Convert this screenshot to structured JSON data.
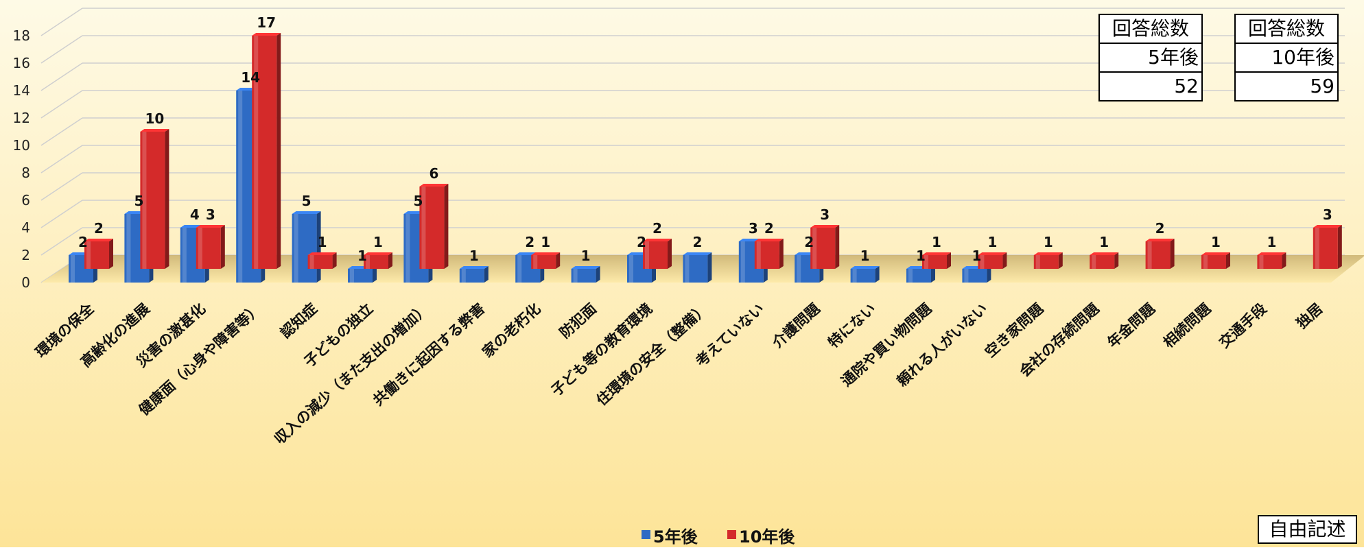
{
  "chart_data": {
    "type": "bar",
    "title": "",
    "xlabel": "",
    "ylabel": "",
    "ylim": [
      0,
      18
    ],
    "yticks": [
      0,
      2,
      4,
      6,
      8,
      10,
      12,
      14,
      16,
      18
    ],
    "grid": true,
    "legend_position": "bottom-center",
    "categories": [
      "環境の保全",
      "高齢化の進展",
      "災害の激甚化",
      "健康面（心身や障害等）",
      "認知症",
      "子どもの独立",
      "収入の減少（また支出の増加）",
      "共働きに起因する弊害",
      "家の老朽化",
      "防犯面",
      "子ども等の教育環境",
      "住環境の安全（整備）",
      "考えていない",
      "介護問題",
      "特にない",
      "通院や買い物問題",
      "頼れる人がいない",
      "空き家問題",
      "会社の存続問題",
      "年金問題",
      "相続問題",
      "交通手段",
      "独居"
    ],
    "series": [
      {
        "name": "5年後",
        "color": "#2e6bc4",
        "values": [
          2,
          5,
          4,
          14,
          5,
          1,
          5,
          1,
          2,
          1,
          2,
          2,
          3,
          2,
          1,
          1,
          1,
          null,
          null,
          null,
          null,
          null,
          null
        ]
      },
      {
        "name": "10年後",
        "color": "#d42a2a",
        "values": [
          2,
          10,
          3,
          17,
          1,
          1,
          6,
          null,
          1,
          null,
          2,
          null,
          2,
          3,
          null,
          1,
          1,
          1,
          1,
          2,
          1,
          1,
          3
        ]
      }
    ]
  },
  "summary_boxes": [
    {
      "header": "回答総数",
      "period": "5年後",
      "total": "52"
    },
    {
      "header": "回答総数",
      "period": "10年後",
      "total": "59"
    }
  ],
  "note_label": "自由記述",
  "colors": {
    "background_top": "#fefae6",
    "background_bottom": "#fde498",
    "grid": "#c8c8c8"
  }
}
